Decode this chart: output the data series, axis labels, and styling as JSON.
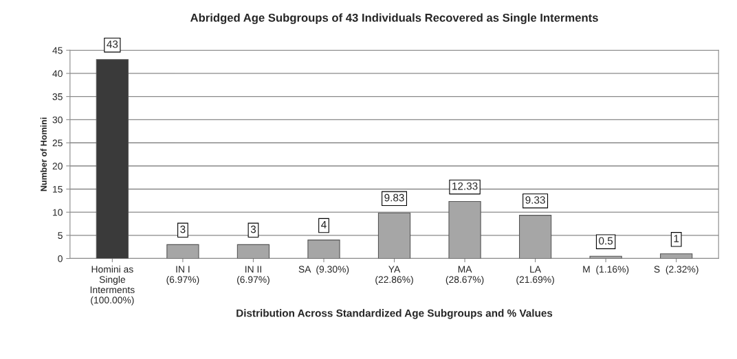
{
  "chart_data": {
    "type": "bar",
    "title": "Abridged Age Subgroups of 43 Individuals Recovered as Single Interments",
    "xlabel": "Distribution Across Standardized Age Subgroups and % Values",
    "ylabel": "Number of Homini",
    "categories": [
      "Homini as\nSingle\nInterments\n(100.00%)",
      "IN I\n(6.97%)",
      "IN II\n(6.97%)",
      "SA  (9.30%)",
      "YA\n(22.86%)",
      "MA\n(28.67%)",
      "LA\n(21.69%)",
      "M  (1.16%)",
      "S  (2.32%)"
    ],
    "values": [
      43,
      3,
      3,
      4,
      9.83,
      12.33,
      9.33,
      0.5,
      1
    ],
    "colors": [
      "#3a3a3a",
      "#a6a6a6",
      "#a6a6a6",
      "#a6a6a6",
      "#a6a6a6",
      "#a6a6a6",
      "#a6a6a6",
      "#a6a6a6",
      "#a6a6a6"
    ],
    "ylim": [
      0,
      45
    ],
    "yticks": [
      0,
      5,
      10,
      15,
      20,
      25,
      30,
      35,
      40,
      45
    ],
    "grid": "y",
    "data_labels": true
  }
}
